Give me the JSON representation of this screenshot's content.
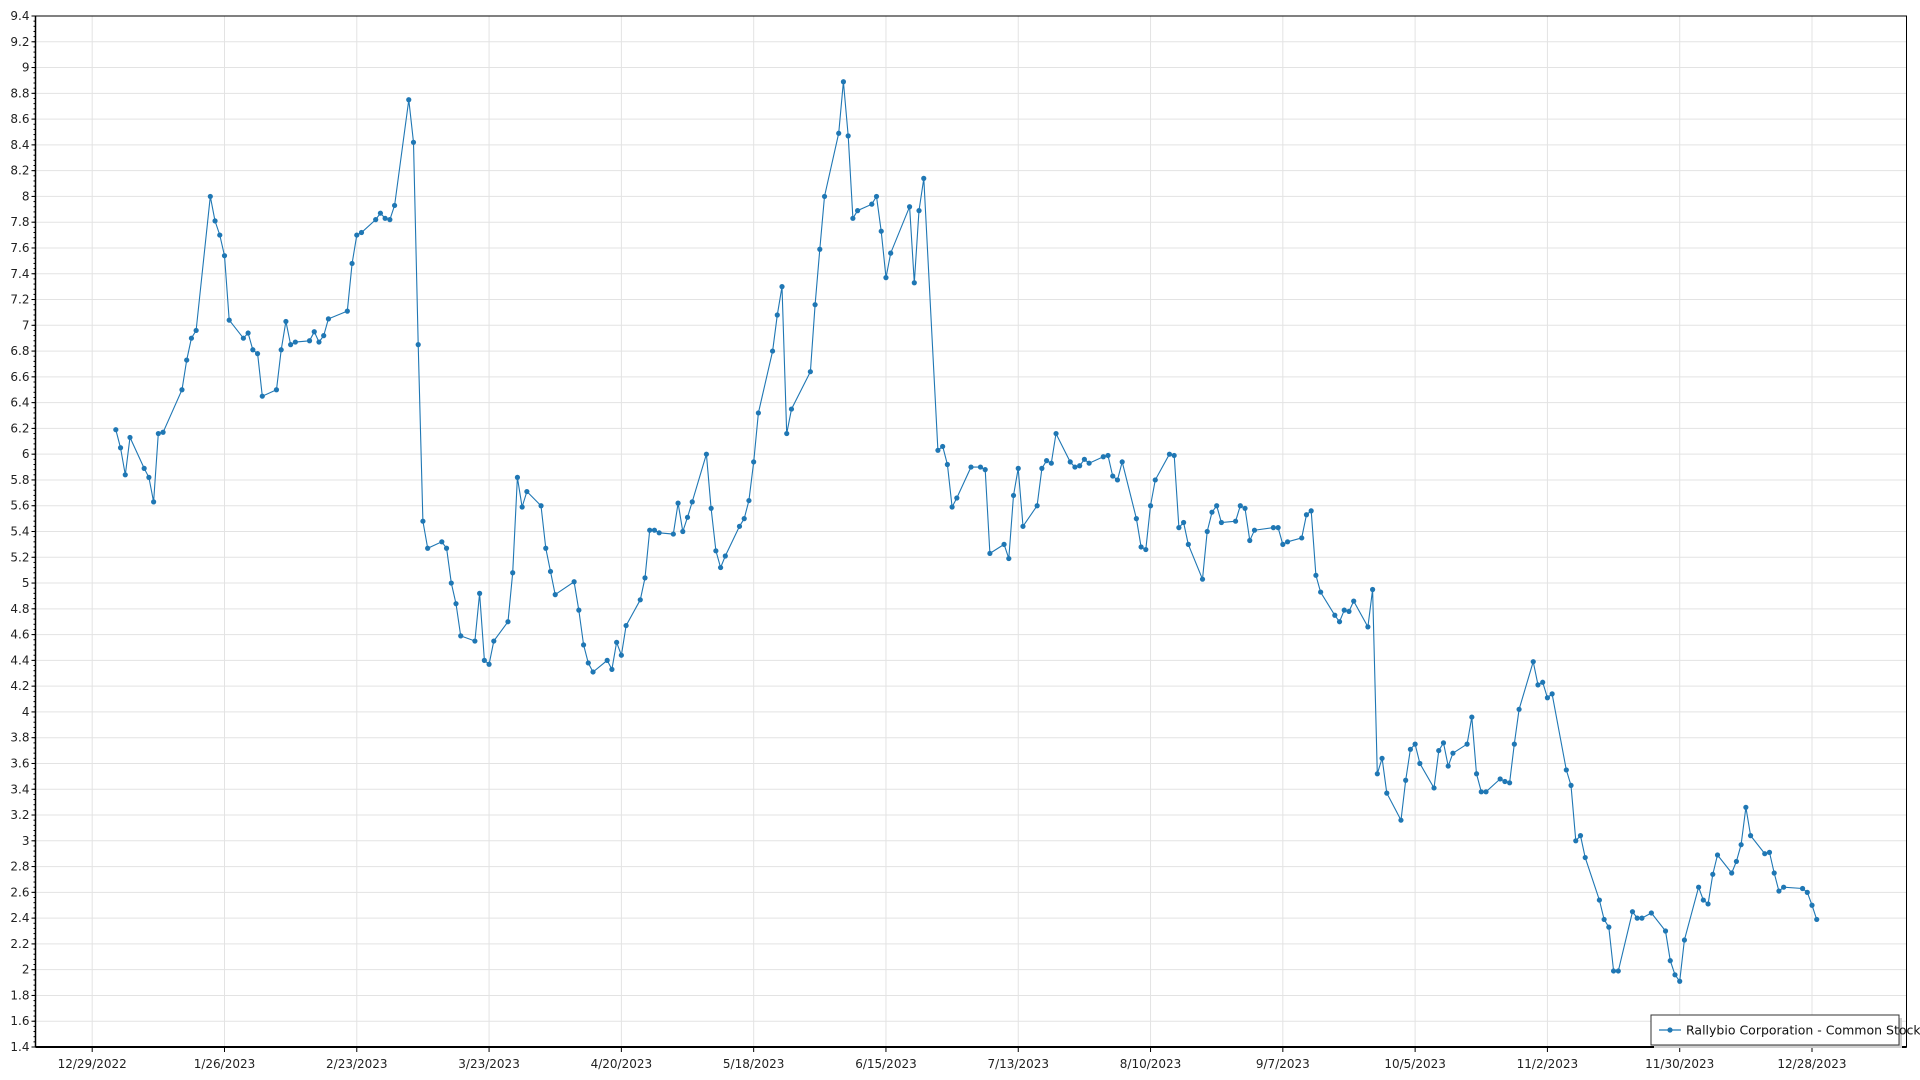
{
  "chart_data": {
    "type": "line",
    "title": "",
    "xlabel": "",
    "ylabel": "",
    "ylim": [
      1.4,
      9.4
    ],
    "yticks": [
      "1.4",
      "1.6",
      "1.8",
      "2",
      "2.2",
      "2.4",
      "2.6",
      "2.8",
      "3",
      "3.2",
      "3.4",
      "3.6",
      "3.8",
      "4",
      "4.2",
      "4.4",
      "4.6",
      "4.8",
      "5",
      "5.2",
      "5.4",
      "5.6",
      "5.8",
      "6",
      "6.2",
      "6.4",
      "6.6",
      "6.8",
      "7",
      "7.2",
      "7.4",
      "7.6",
      "7.8",
      "8",
      "8.2",
      "8.4",
      "8.6",
      "8.8",
      "9",
      "9.2",
      "9.4"
    ],
    "xlim": [
      "2022-12-17",
      "2024-01-17"
    ],
    "xticks": [
      {
        "date": "2022-12-29",
        "label": "12/29/2022"
      },
      {
        "date": "2023-01-26",
        "label": "1/26/2023"
      },
      {
        "date": "2023-02-23",
        "label": "2/23/2023"
      },
      {
        "date": "2023-03-23",
        "label": "3/23/2023"
      },
      {
        "date": "2023-04-20",
        "label": "4/20/2023"
      },
      {
        "date": "2023-05-18",
        "label": "5/18/2023"
      },
      {
        "date": "2023-06-15",
        "label": "6/15/2023"
      },
      {
        "date": "2023-07-13",
        "label": "7/13/2023"
      },
      {
        "date": "2023-08-10",
        "label": "8/10/2023"
      },
      {
        "date": "2023-09-07",
        "label": "9/7/2023"
      },
      {
        "date": "2023-10-05",
        "label": "10/5/2023"
      },
      {
        "date": "2023-11-02",
        "label": "11/2/2023"
      },
      {
        "date": "2023-11-30",
        "label": "11/30/2023"
      },
      {
        "date": "2023-12-28",
        "label": "12/28/2023"
      }
    ],
    "grid": true,
    "legend_position": "bottom-right",
    "colors": {
      "series": "#1f77b4",
      "grid": "#e3e3e3",
      "axis": "#000000"
    },
    "series": [
      {
        "name": "Rallybio Corporation - Common Stock",
        "points": [
          [
            "2023-01-03",
            6.19
          ],
          [
            "2023-01-04",
            6.05
          ],
          [
            "2023-01-05",
            5.84
          ],
          [
            "2023-01-06",
            6.13
          ],
          [
            "2023-01-09",
            5.89
          ],
          [
            "2023-01-10",
            5.82
          ],
          [
            "2023-01-11",
            5.63
          ],
          [
            "2023-01-12",
            6.16
          ],
          [
            "2023-01-13",
            6.17
          ],
          [
            "2023-01-17",
            6.5
          ],
          [
            "2023-01-18",
            6.73
          ],
          [
            "2023-01-19",
            6.9
          ],
          [
            "2023-01-20",
            6.96
          ],
          [
            "2023-01-23",
            8.0
          ],
          [
            "2023-01-24",
            7.81
          ],
          [
            "2023-01-25",
            7.7
          ],
          [
            "2023-01-26",
            7.54
          ],
          [
            "2023-01-27",
            7.04
          ],
          [
            "2023-01-30",
            6.9
          ],
          [
            "2023-01-31",
            6.94
          ],
          [
            "2023-02-01",
            6.81
          ],
          [
            "2023-02-02",
            6.78
          ],
          [
            "2023-02-03",
            6.45
          ],
          [
            "2023-02-06",
            6.5
          ],
          [
            "2023-02-07",
            6.81
          ],
          [
            "2023-02-08",
            7.03
          ],
          [
            "2023-02-09",
            6.85
          ],
          [
            "2023-02-10",
            6.87
          ],
          [
            "2023-02-13",
            6.88
          ],
          [
            "2023-02-14",
            6.95
          ],
          [
            "2023-02-15",
            6.87
          ],
          [
            "2023-02-16",
            6.92
          ],
          [
            "2023-02-17",
            7.05
          ],
          [
            "2023-02-21",
            7.11
          ],
          [
            "2023-02-22",
            7.48
          ],
          [
            "2023-02-23",
            7.7
          ],
          [
            "2023-02-24",
            7.72
          ],
          [
            "2023-02-27",
            7.82
          ],
          [
            "2023-02-28",
            7.87
          ],
          [
            "2023-03-01",
            7.83
          ],
          [
            "2023-03-02",
            7.82
          ],
          [
            "2023-03-03",
            7.93
          ],
          [
            "2023-03-06",
            8.75
          ],
          [
            "2023-03-07",
            8.42
          ],
          [
            "2023-03-08",
            6.85
          ],
          [
            "2023-03-09",
            5.48
          ],
          [
            "2023-03-10",
            5.27
          ],
          [
            "2023-03-13",
            5.32
          ],
          [
            "2023-03-14",
            5.27
          ],
          [
            "2023-03-15",
            5.0
          ],
          [
            "2023-03-16",
            4.84
          ],
          [
            "2023-03-17",
            4.59
          ],
          [
            "2023-03-20",
            4.55
          ],
          [
            "2023-03-21",
            4.92
          ],
          [
            "2023-03-22",
            4.4
          ],
          [
            "2023-03-23",
            4.37
          ],
          [
            "2023-03-24",
            4.55
          ],
          [
            "2023-03-27",
            4.7
          ],
          [
            "2023-03-28",
            5.08
          ],
          [
            "2023-03-29",
            5.82
          ],
          [
            "2023-03-30",
            5.59
          ],
          [
            "2023-03-31",
            5.71
          ],
          [
            "2023-04-03",
            5.6
          ],
          [
            "2023-04-04",
            5.27
          ],
          [
            "2023-04-05",
            5.09
          ],
          [
            "2023-04-06",
            4.91
          ],
          [
            "2023-04-10",
            5.01
          ],
          [
            "2023-04-11",
            4.79
          ],
          [
            "2023-04-12",
            4.52
          ],
          [
            "2023-04-13",
            4.38
          ],
          [
            "2023-04-14",
            4.31
          ],
          [
            "2023-04-17",
            4.4
          ],
          [
            "2023-04-18",
            4.33
          ],
          [
            "2023-04-19",
            4.54
          ],
          [
            "2023-04-20",
            4.44
          ],
          [
            "2023-04-21",
            4.67
          ],
          [
            "2023-04-24",
            4.87
          ],
          [
            "2023-04-25",
            5.04
          ],
          [
            "2023-04-26",
            5.41
          ],
          [
            "2023-04-27",
            5.41
          ],
          [
            "2023-04-28",
            5.39
          ],
          [
            "2023-05-01",
            5.38
          ],
          [
            "2023-05-02",
            5.62
          ],
          [
            "2023-05-03",
            5.4
          ],
          [
            "2023-05-04",
            5.51
          ],
          [
            "2023-05-05",
            5.63
          ],
          [
            "2023-05-08",
            6.0
          ],
          [
            "2023-05-09",
            5.58
          ],
          [
            "2023-05-10",
            5.25
          ],
          [
            "2023-05-11",
            5.12
          ],
          [
            "2023-05-12",
            5.21
          ],
          [
            "2023-05-15",
            5.44
          ],
          [
            "2023-05-16",
            5.5
          ],
          [
            "2023-05-17",
            5.64
          ],
          [
            "2023-05-18",
            5.94
          ],
          [
            "2023-05-19",
            6.32
          ],
          [
            "2023-05-22",
            6.8
          ],
          [
            "2023-05-23",
            7.08
          ],
          [
            "2023-05-24",
            7.3
          ],
          [
            "2023-05-25",
            6.16
          ],
          [
            "2023-05-26",
            6.35
          ],
          [
            "2023-05-30",
            6.64
          ],
          [
            "2023-05-31",
            7.16
          ],
          [
            "2023-06-01",
            7.59
          ],
          [
            "2023-06-02",
            8.0
          ],
          [
            "2023-06-05",
            8.49
          ],
          [
            "2023-06-06",
            8.89
          ],
          [
            "2023-06-07",
            8.47
          ],
          [
            "2023-06-08",
            7.83
          ],
          [
            "2023-06-09",
            7.89
          ],
          [
            "2023-06-12",
            7.94
          ],
          [
            "2023-06-13",
            8.0
          ],
          [
            "2023-06-14",
            7.73
          ],
          [
            "2023-06-15",
            7.37
          ],
          [
            "2023-06-16",
            7.56
          ],
          [
            "2023-06-20",
            7.92
          ],
          [
            "2023-06-21",
            7.33
          ],
          [
            "2023-06-22",
            7.89
          ],
          [
            "2023-06-23",
            8.14
          ],
          [
            "2023-06-26",
            6.03
          ],
          [
            "2023-06-27",
            6.06
          ],
          [
            "2023-06-28",
            5.92
          ],
          [
            "2023-06-29",
            5.59
          ],
          [
            "2023-06-30",
            5.66
          ],
          [
            "2023-07-03",
            5.9
          ],
          [
            "2023-07-05",
            5.9
          ],
          [
            "2023-07-06",
            5.88
          ],
          [
            "2023-07-07",
            5.23
          ],
          [
            "2023-07-10",
            5.3
          ],
          [
            "2023-07-11",
            5.19
          ],
          [
            "2023-07-12",
            5.68
          ],
          [
            "2023-07-13",
            5.89
          ],
          [
            "2023-07-14",
            5.44
          ],
          [
            "2023-07-17",
            5.6
          ],
          [
            "2023-07-18",
            5.89
          ],
          [
            "2023-07-19",
            5.95
          ],
          [
            "2023-07-20",
            5.93
          ],
          [
            "2023-07-21",
            6.16
          ],
          [
            "2023-07-24",
            5.94
          ],
          [
            "2023-07-25",
            5.9
          ],
          [
            "2023-07-26",
            5.91
          ],
          [
            "2023-07-27",
            5.96
          ],
          [
            "2023-07-28",
            5.93
          ],
          [
            "2023-07-31",
            5.98
          ],
          [
            "2023-08-01",
            5.99
          ],
          [
            "2023-08-02",
            5.83
          ],
          [
            "2023-08-03",
            5.8
          ],
          [
            "2023-08-04",
            5.94
          ],
          [
            "2023-08-07",
            5.5
          ],
          [
            "2023-08-08",
            5.28
          ],
          [
            "2023-08-09",
            5.26
          ],
          [
            "2023-08-10",
            5.6
          ],
          [
            "2023-08-11",
            5.8
          ],
          [
            "2023-08-14",
            6.0
          ],
          [
            "2023-08-15",
            5.99
          ],
          [
            "2023-08-16",
            5.43
          ],
          [
            "2023-08-17",
            5.47
          ],
          [
            "2023-08-18",
            5.3
          ],
          [
            "2023-08-21",
            5.03
          ],
          [
            "2023-08-22",
            5.4
          ],
          [
            "2023-08-23",
            5.55
          ],
          [
            "2023-08-24",
            5.6
          ],
          [
            "2023-08-25",
            5.47
          ],
          [
            "2023-08-28",
            5.48
          ],
          [
            "2023-08-29",
            5.6
          ],
          [
            "2023-08-30",
            5.58
          ],
          [
            "2023-08-31",
            5.33
          ],
          [
            "2023-09-01",
            5.41
          ],
          [
            "2023-09-05",
            5.43
          ],
          [
            "2023-09-06",
            5.43
          ],
          [
            "2023-09-07",
            5.3
          ],
          [
            "2023-09-08",
            5.32
          ],
          [
            "2023-09-11",
            5.35
          ],
          [
            "2023-09-12",
            5.53
          ],
          [
            "2023-09-13",
            5.56
          ],
          [
            "2023-09-14",
            5.06
          ],
          [
            "2023-09-15",
            4.93
          ],
          [
            "2023-09-18",
            4.75
          ],
          [
            "2023-09-19",
            4.7
          ],
          [
            "2023-09-20",
            4.79
          ],
          [
            "2023-09-21",
            4.78
          ],
          [
            "2023-09-22",
            4.86
          ],
          [
            "2023-09-25",
            4.66
          ],
          [
            "2023-09-26",
            4.95
          ],
          [
            "2023-09-27",
            3.52
          ],
          [
            "2023-09-28",
            3.64
          ],
          [
            "2023-09-29",
            3.37
          ],
          [
            "2023-10-02",
            3.16
          ],
          [
            "2023-10-03",
            3.47
          ],
          [
            "2023-10-04",
            3.71
          ],
          [
            "2023-10-05",
            3.75
          ],
          [
            "2023-10-06",
            3.6
          ],
          [
            "2023-10-09",
            3.41
          ],
          [
            "2023-10-10",
            3.7
          ],
          [
            "2023-10-11",
            3.76
          ],
          [
            "2023-10-12",
            3.58
          ],
          [
            "2023-10-13",
            3.68
          ],
          [
            "2023-10-16",
            3.75
          ],
          [
            "2023-10-17",
            3.96
          ],
          [
            "2023-10-18",
            3.52
          ],
          [
            "2023-10-19",
            3.38
          ],
          [
            "2023-10-20",
            3.38
          ],
          [
            "2023-10-23",
            3.48
          ],
          [
            "2023-10-24",
            3.46
          ],
          [
            "2023-10-25",
            3.45
          ],
          [
            "2023-10-26",
            3.75
          ],
          [
            "2023-10-27",
            4.02
          ],
          [
            "2023-10-30",
            4.39
          ],
          [
            "2023-10-31",
            4.21
          ],
          [
            "2023-11-01",
            4.23
          ],
          [
            "2023-11-02",
            4.11
          ],
          [
            "2023-11-03",
            4.14
          ],
          [
            "2023-11-06",
            3.55
          ],
          [
            "2023-11-07",
            3.43
          ],
          [
            "2023-11-08",
            3.0
          ],
          [
            "2023-11-09",
            3.04
          ],
          [
            "2023-11-10",
            2.87
          ],
          [
            "2023-11-13",
            2.54
          ],
          [
            "2023-11-14",
            2.39
          ],
          [
            "2023-11-15",
            2.33
          ],
          [
            "2023-11-16",
            1.99
          ],
          [
            "2023-11-17",
            1.99
          ],
          [
            "2023-11-20",
            2.45
          ],
          [
            "2023-11-21",
            2.4
          ],
          [
            "2023-11-22",
            2.4
          ],
          [
            "2023-11-24",
            2.44
          ],
          [
            "2023-11-27",
            2.3
          ],
          [
            "2023-11-28",
            2.07
          ],
          [
            "2023-11-29",
            1.96
          ],
          [
            "2023-11-30",
            1.91
          ],
          [
            "2023-12-01",
            2.23
          ],
          [
            "2023-12-04",
            2.64
          ],
          [
            "2023-12-05",
            2.54
          ],
          [
            "2023-12-06",
            2.51
          ],
          [
            "2023-12-07",
            2.74
          ],
          [
            "2023-12-08",
            2.89
          ],
          [
            "2023-12-11",
            2.75
          ],
          [
            "2023-12-12",
            2.84
          ],
          [
            "2023-12-13",
            2.97
          ],
          [
            "2023-12-14",
            3.26
          ],
          [
            "2023-12-15",
            3.04
          ],
          [
            "2023-12-18",
            2.9
          ],
          [
            "2023-12-19",
            2.91
          ],
          [
            "2023-12-20",
            2.75
          ],
          [
            "2023-12-21",
            2.61
          ],
          [
            "2023-12-22",
            2.64
          ],
          [
            "2023-12-26",
            2.63
          ],
          [
            "2023-12-27",
            2.6
          ],
          [
            "2023-12-28",
            2.5
          ],
          [
            "2023-12-29",
            2.39
          ]
        ]
      }
    ]
  }
}
